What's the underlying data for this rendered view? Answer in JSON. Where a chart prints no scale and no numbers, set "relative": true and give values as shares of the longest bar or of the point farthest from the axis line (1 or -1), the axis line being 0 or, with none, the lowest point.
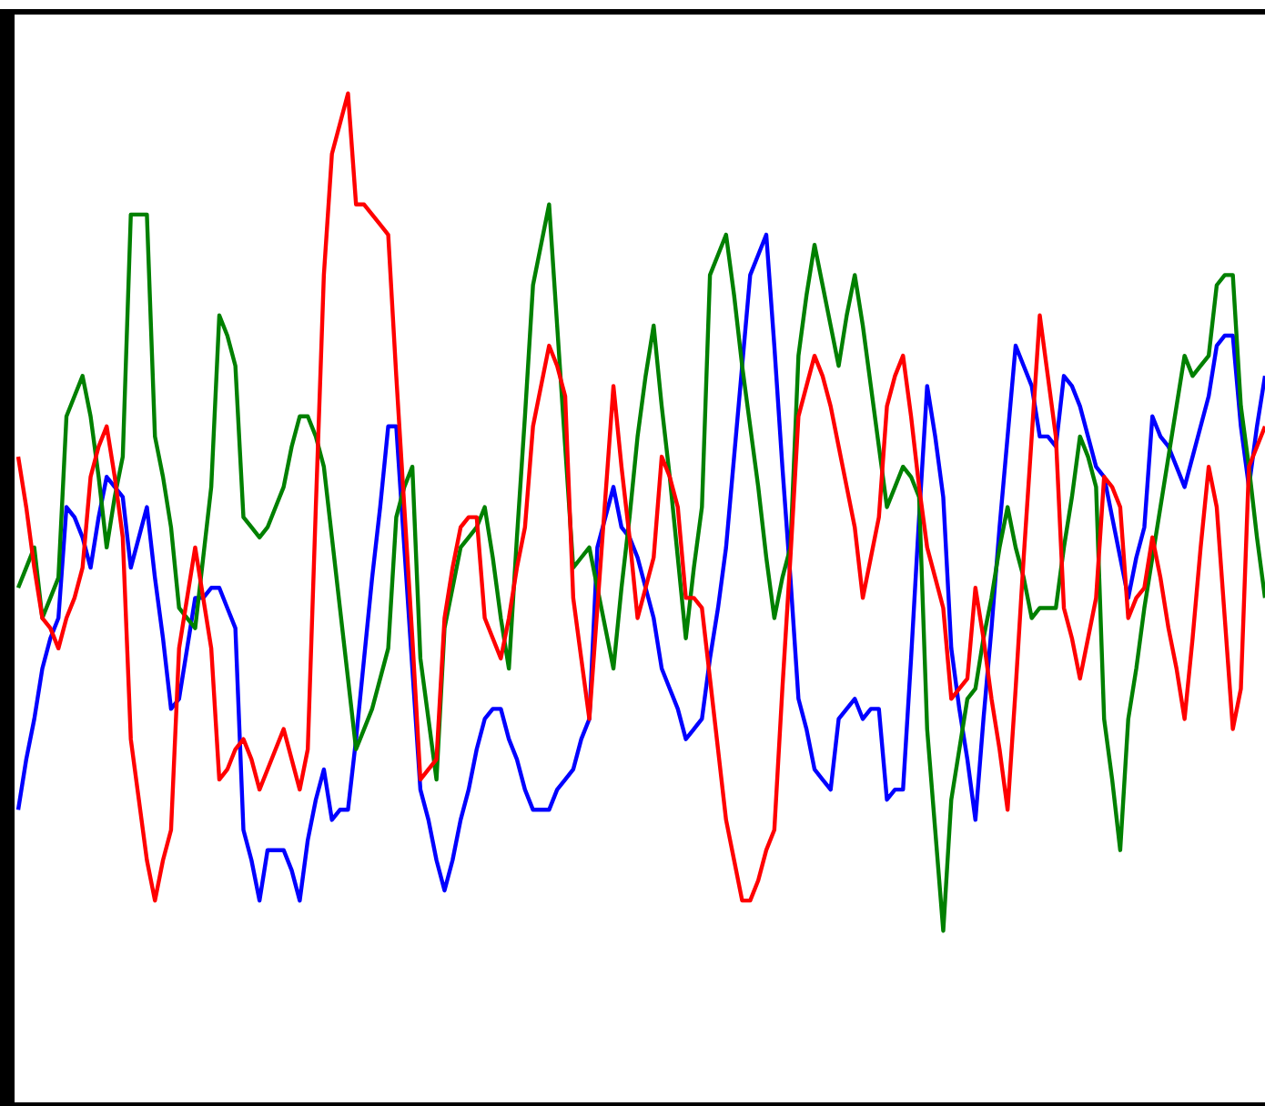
{
  "chart_data": {
    "type": "line",
    "relative": true,
    "tick_labels": false,
    "marker": "none",
    "line_style": "solid",
    "categories": [
      null,
      null,
      null,
      null,
      null,
      null,
      null,
      null,
      null,
      null,
      null,
      null,
      null,
      null,
      null,
      null,
      null,
      null,
      null,
      null,
      null,
      null,
      null,
      null,
      null,
      null,
      null,
      null,
      null,
      null,
      null,
      null,
      null,
      null,
      null,
      null,
      null,
      null,
      null,
      null,
      null,
      null,
      null,
      null,
      null,
      null,
      null,
      null,
      null,
      null,
      null,
      null,
      null,
      null,
      null,
      null,
      null,
      null,
      null,
      null,
      null,
      null,
      null,
      null,
      null,
      null,
      null,
      null,
      null,
      null,
      null,
      null,
      null,
      null,
      null,
      null,
      null,
      null,
      null,
      null,
      null,
      null,
      null,
      null,
      null,
      null,
      null,
      null,
      null,
      null,
      null,
      null,
      null,
      null,
      null,
      null,
      null,
      null,
      null,
      null,
      null,
      null,
      null,
      null,
      null,
      null,
      null,
      null,
      null,
      null,
      null,
      null,
      null,
      null,
      null,
      null,
      null,
      null,
      null,
      null,
      null,
      null,
      null,
      null,
      null,
      null,
      null,
      null,
      null,
      null,
      null,
      null,
      null,
      null,
      null,
      null,
      null,
      null,
      null,
      null,
      null,
      null,
      null,
      null,
      null,
      null,
      null,
      null,
      null,
      null,
      null,
      null,
      null,
      null,
      null,
      null
    ],
    "series": [
      {
        "color": "#0000ff",
        "values": [
          0.29,
          0.34,
          0.38,
          0.43,
          0.46,
          0.48,
          0.59,
          0.58,
          0.56,
          0.53,
          0.58,
          0.62,
          0.61,
          0.6,
          0.53,
          0.56,
          0.59,
          0.52,
          0.46,
          0.39,
          0.4,
          0.45,
          0.5,
          0.5,
          0.51,
          0.51,
          0.49,
          0.47,
          0.27,
          0.24,
          0.2,
          0.25,
          0.25,
          0.25,
          0.23,
          0.2,
          0.26,
          0.3,
          0.33,
          0.28,
          0.29,
          0.29,
          0.36,
          0.44,
          0.52,
          0.59,
          0.67,
          0.67,
          0.55,
          0.43,
          0.31,
          0.28,
          0.24,
          0.21,
          0.24,
          0.28,
          0.31,
          0.35,
          0.38,
          0.39,
          0.39,
          0.36,
          0.34,
          0.31,
          0.29,
          0.29,
          0.29,
          0.31,
          0.32,
          0.33,
          0.36,
          0.38,
          0.55,
          0.58,
          0.61,
          0.57,
          0.56,
          0.54,
          0.51,
          0.48,
          0.43,
          0.41,
          0.39,
          0.36,
          0.37,
          0.38,
          0.44,
          0.49,
          0.55,
          0.64,
          0.73,
          0.82,
          0.84,
          0.86,
          0.75,
          0.63,
          0.52,
          0.4,
          0.37,
          0.33,
          0.32,
          0.31,
          0.38,
          0.39,
          0.4,
          0.38,
          0.39,
          0.39,
          0.3,
          0.31,
          0.31,
          0.44,
          0.58,
          0.71,
          0.66,
          0.6,
          0.45,
          0.39,
          0.34,
          0.28,
          0.38,
          0.47,
          0.57,
          0.66,
          0.75,
          0.73,
          0.71,
          0.66,
          0.66,
          0.65,
          0.72,
          0.71,
          0.69,
          0.66,
          0.63,
          0.62,
          0.58,
          0.54,
          0.5,
          0.54,
          0.57,
          0.68,
          0.66,
          0.65,
          0.63,
          0.61,
          0.64,
          0.67,
          0.7,
          0.75,
          0.76,
          0.76,
          0.67,
          0.61,
          0.67,
          0.72
        ]
      },
      {
        "color": "#008000",
        "values": [
          0.51,
          0.53,
          0.55,
          0.48,
          0.5,
          0.52,
          0.68,
          0.7,
          0.72,
          0.68,
          0.62,
          0.55,
          0.6,
          0.64,
          0.88,
          0.88,
          0.88,
          0.66,
          0.62,
          0.57,
          0.49,
          0.48,
          0.47,
          0.54,
          0.61,
          0.78,
          0.76,
          0.73,
          0.58,
          0.57,
          0.56,
          0.57,
          0.59,
          0.61,
          0.65,
          0.68,
          0.68,
          0.66,
          0.63,
          0.56,
          0.49,
          0.42,
          0.35,
          0.37,
          0.39,
          0.42,
          0.45,
          0.58,
          0.61,
          0.63,
          0.44,
          0.38,
          0.32,
          0.47,
          0.51,
          0.55,
          0.56,
          0.57,
          0.59,
          0.54,
          0.48,
          0.43,
          0.56,
          0.68,
          0.81,
          0.85,
          0.89,
          0.77,
          0.65,
          0.53,
          0.54,
          0.55,
          0.51,
          0.47,
          0.43,
          0.51,
          0.58,
          0.66,
          0.72,
          0.77,
          0.69,
          0.62,
          0.54,
          0.46,
          0.53,
          0.59,
          0.82,
          0.84,
          0.86,
          0.8,
          0.73,
          0.67,
          0.61,
          0.54,
          0.48,
          0.52,
          0.55,
          0.74,
          0.8,
          0.85,
          0.81,
          0.77,
          0.73,
          0.78,
          0.82,
          0.77,
          0.71,
          0.65,
          0.59,
          0.61,
          0.63,
          0.62,
          0.6,
          0.37,
          0.27,
          0.17,
          0.3,
          0.35,
          0.4,
          0.41,
          0.46,
          0.5,
          0.55,
          0.59,
          0.55,
          0.52,
          0.48,
          0.49,
          0.49,
          0.49,
          0.55,
          0.6,
          0.66,
          0.64,
          0.61,
          0.38,
          0.32,
          0.25,
          0.38,
          0.43,
          0.49,
          0.54,
          0.59,
          0.64,
          0.69,
          0.74,
          0.72,
          0.73,
          0.74,
          0.81,
          0.82,
          0.82,
          0.69,
          0.63,
          0.56,
          0.5
        ]
      },
      {
        "color": "#ff0000",
        "values": [
          0.64,
          0.59,
          0.53,
          0.48,
          0.47,
          0.45,
          0.48,
          0.5,
          0.53,
          0.62,
          0.65,
          0.67,
          0.62,
          0.56,
          0.36,
          0.3,
          0.24,
          0.2,
          0.24,
          0.27,
          0.45,
          0.5,
          0.55,
          0.5,
          0.45,
          0.32,
          0.33,
          0.35,
          0.36,
          0.34,
          0.31,
          0.33,
          0.35,
          0.37,
          0.34,
          0.31,
          0.35,
          0.59,
          0.82,
          0.94,
          0.97,
          1,
          0.89,
          0.89,
          0.88,
          0.87,
          0.86,
          0.72,
          0.59,
          0.46,
          0.32,
          0.33,
          0.34,
          0.48,
          0.53,
          0.57,
          0.58,
          0.58,
          0.48,
          0.46,
          0.44,
          0.48,
          0.53,
          0.57,
          0.67,
          0.71,
          0.75,
          0.73,
          0.7,
          0.5,
          0.44,
          0.38,
          0.49,
          0.6,
          0.71,
          0.63,
          0.56,
          0.48,
          0.51,
          0.54,
          0.64,
          0.62,
          0.59,
          0.5,
          0.5,
          0.49,
          0.42,
          0.35,
          0.28,
          0.24,
          0.2,
          0.2,
          0.22,
          0.25,
          0.27,
          0.41,
          0.54,
          0.68,
          0.71,
          0.74,
          0.72,
          0.69,
          0.65,
          0.61,
          0.57,
          0.5,
          0.54,
          0.58,
          0.69,
          0.72,
          0.74,
          0.68,
          0.61,
          0.55,
          0.52,
          0.49,
          0.4,
          0.41,
          0.42,
          0.51,
          0.46,
          0.4,
          0.35,
          0.29,
          0.41,
          0.54,
          0.66,
          0.78,
          0.72,
          0.66,
          0.49,
          0.46,
          0.42,
          0.46,
          0.5,
          0.62,
          0.61,
          0.59,
          0.48,
          0.5,
          0.51,
          0.56,
          0.52,
          0.47,
          0.43,
          0.38,
          0.46,
          0.55,
          0.63,
          0.59,
          0.48,
          0.37,
          0.41,
          0.63,
          0.65,
          0.67
        ]
      }
    ]
  }
}
